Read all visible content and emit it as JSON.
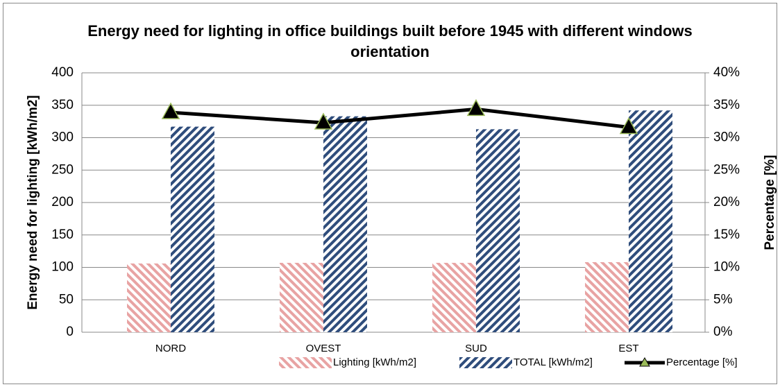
{
  "chart_data": {
    "type": "bar",
    "title": "Energy need for lighting in office buildings built before 1945 with different windows orientation",
    "y_label": "Energy need for lighting [kWh/m2]",
    "y2_label": "Percentage [%]",
    "categories": [
      "NORD",
      "OVEST",
      "SUD",
      "EST"
    ],
    "series": [
      {
        "name": "Lighting [kWh/m2]",
        "type": "bar",
        "color": "#e8a3a3",
        "values": [
          106,
          107,
          107,
          108
        ]
      },
      {
        "name": "TOTAL [kWh/m2]",
        "type": "bar",
        "color": "#2f4d7c",
        "values": [
          317,
          333,
          313,
          342
        ]
      },
      {
        "name": "Percentage [%]",
        "type": "line",
        "axis": "y2",
        "color": "#000000",
        "marker_color": "#9bbb59",
        "values": [
          33.9,
          32.3,
          34.4,
          31.6
        ]
      }
    ],
    "ylim": [
      0,
      400
    ],
    "yticks": [
      0,
      50,
      100,
      150,
      200,
      250,
      300,
      350,
      400
    ],
    "y2lim": [
      0,
      40
    ],
    "y2ticks": [
      {
        "value": 0,
        "label": "0%"
      },
      {
        "value": 5,
        "label": "5%"
      },
      {
        "value": 10,
        "label": "10%"
      },
      {
        "value": 15,
        "label": "15%"
      },
      {
        "value": 20,
        "label": "20%"
      },
      {
        "value": 25,
        "label": "25%"
      },
      {
        "value": 30,
        "label": "30%"
      },
      {
        "value": 35,
        "label": "35%"
      },
      {
        "value": 40,
        "label": "40%"
      }
    ],
    "grid": true,
    "legend": "bottom"
  }
}
